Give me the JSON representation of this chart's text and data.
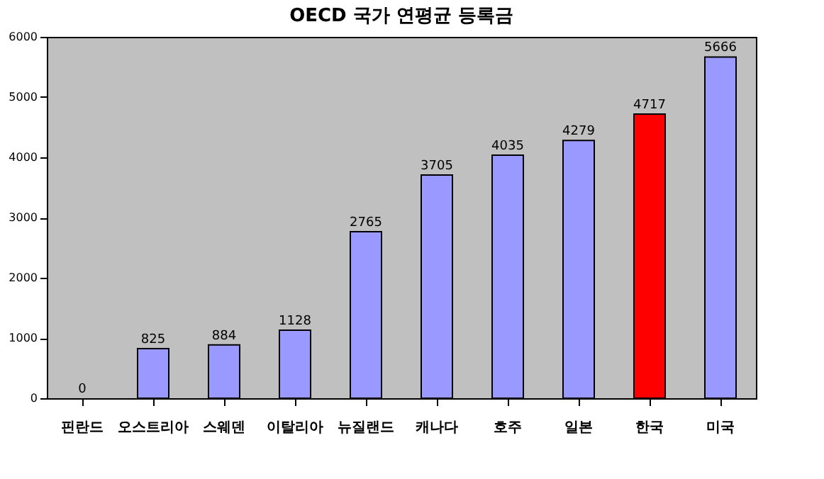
{
  "chart_data": {
    "type": "bar",
    "title": "OECD 국가 연평균 등록금",
    "categories": [
      "핀란드",
      "오스트리아",
      "스웨덴",
      "이탈리아",
      "뉴질랜드",
      "캐나다",
      "호주",
      "일본",
      "한국",
      "미국"
    ],
    "values": [
      0,
      825,
      884,
      1128,
      2765,
      3705,
      4035,
      4279,
      4717,
      5666
    ],
    "colors": [
      "#9999ff",
      "#9999ff",
      "#9999ff",
      "#9999ff",
      "#9999ff",
      "#9999ff",
      "#9999ff",
      "#9999ff",
      "#ff0000",
      "#9999ff"
    ],
    "ylim": [
      0,
      6000
    ],
    "yticks": [
      0,
      1000,
      2000,
      3000,
      4000,
      5000,
      6000
    ],
    "data_labels": true,
    "grid": false
  }
}
